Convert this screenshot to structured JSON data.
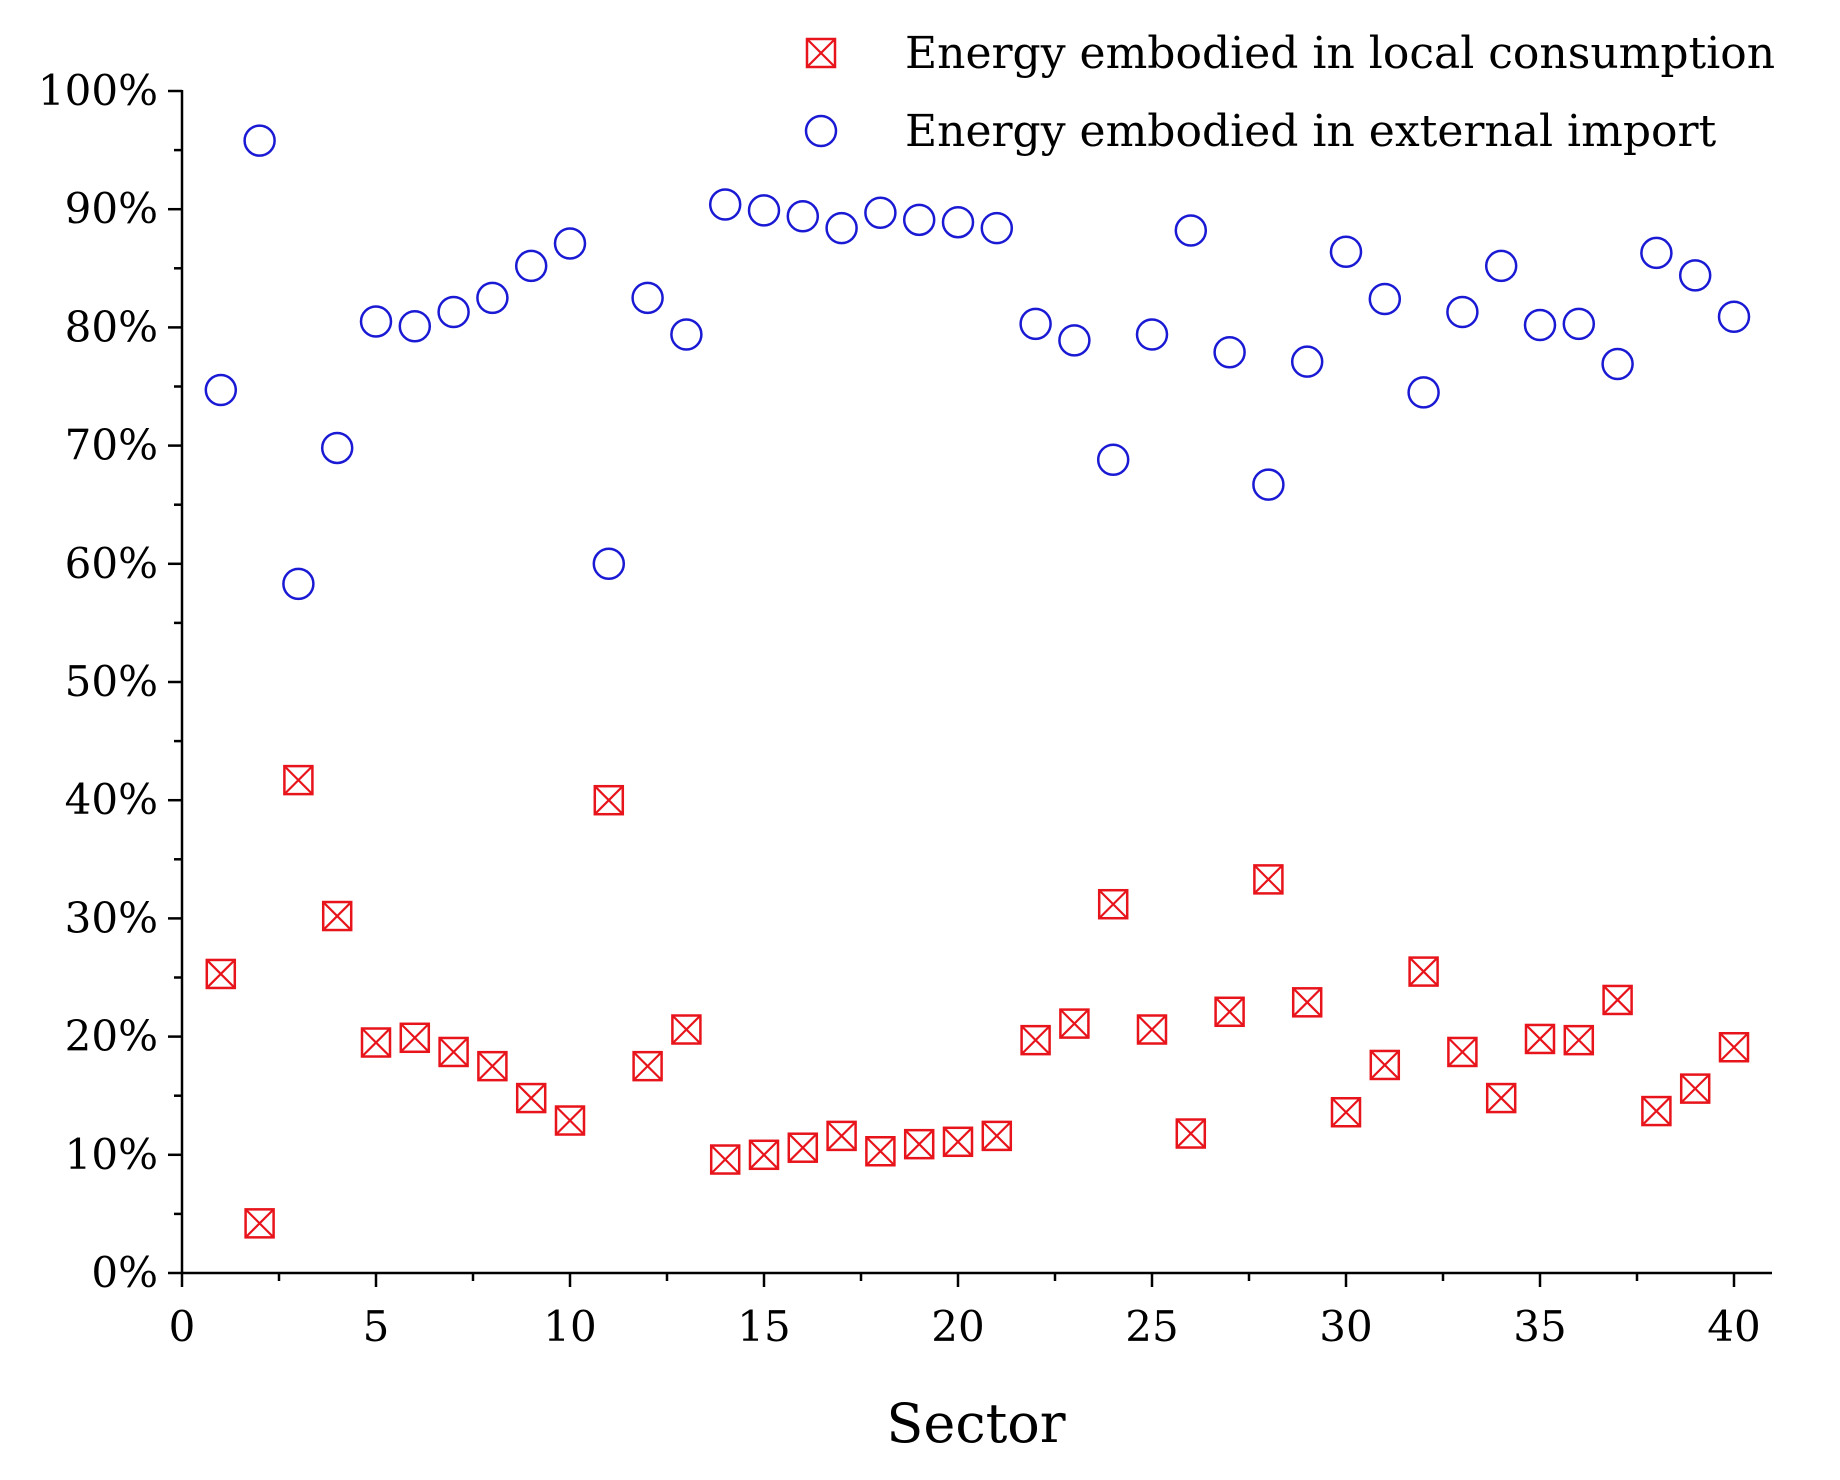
{
  "chart_data": {
    "type": "scatter",
    "title": "",
    "xlabel": "Sector",
    "ylabel": "",
    "xlim": [
      0,
      41
    ],
    "ylim": [
      0,
      100
    ],
    "x_ticks": [
      0,
      5,
      10,
      15,
      20,
      25,
      30,
      35,
      40
    ],
    "y_ticks": [
      0,
      10,
      20,
      30,
      40,
      50,
      60,
      70,
      80,
      90,
      100
    ],
    "y_tick_labels": [
      "0%",
      "10%",
      "20%",
      "30%",
      "40%",
      "50%",
      "60%",
      "70%",
      "80%",
      "90%",
      "100%"
    ],
    "legend_position": "top-right",
    "series": [
      {
        "name": "Energy embodied in local consumption",
        "marker": "square-cross",
        "color": "#e8141b",
        "x": [
          1,
          2,
          3,
          4,
          5,
          6,
          7,
          8,
          9,
          10,
          11,
          12,
          13,
          14,
          15,
          16,
          17,
          18,
          19,
          20,
          21,
          22,
          23,
          24,
          25,
          26,
          27,
          28,
          29,
          30,
          31,
          32,
          33,
          34,
          35,
          36,
          37,
          38,
          39,
          40
        ],
        "values": [
          25.3,
          4.2,
          41.7,
          30.2,
          19.5,
          19.9,
          18.7,
          17.5,
          14.8,
          12.9,
          40,
          17.5,
          20.6,
          9.6,
          10,
          10.6,
          11.6,
          10.3,
          10.9,
          11.1,
          11.6,
          19.7,
          21.1,
          31.2,
          20.6,
          11.8,
          22.1,
          33.3,
          22.9,
          13.6,
          17.6,
          25.5,
          18.7,
          14.8,
          19.8,
          19.7,
          23.1,
          13.7,
          15.6,
          19.1
        ]
      },
      {
        "name": "Energy embodied in external import",
        "marker": "circle",
        "color": "#1a1ad4",
        "x": [
          1,
          2,
          3,
          4,
          5,
          6,
          7,
          8,
          9,
          10,
          11,
          12,
          13,
          14,
          15,
          16,
          17,
          18,
          19,
          20,
          21,
          22,
          23,
          24,
          25,
          26,
          27,
          28,
          29,
          30,
          31,
          32,
          33,
          34,
          35,
          36,
          37,
          38,
          39,
          40
        ],
        "values": [
          74.7,
          95.8,
          58.3,
          69.8,
          80.5,
          80.1,
          81.3,
          82.5,
          85.2,
          87.1,
          60,
          82.5,
          79.4,
          90.4,
          89.9,
          89.4,
          88.4,
          89.7,
          89.1,
          88.9,
          88.4,
          80.3,
          78.9,
          68.8,
          79.4,
          88.2,
          77.9,
          66.7,
          77.1,
          86.4,
          82.4,
          74.5,
          81.3,
          85.2,
          80.2,
          80.3,
          76.9,
          86.3,
          84.4,
          80.9
        ]
      }
    ]
  },
  "colors": {
    "local": "#e8141b",
    "import": "#1a1ad4",
    "axis": "#000000"
  }
}
